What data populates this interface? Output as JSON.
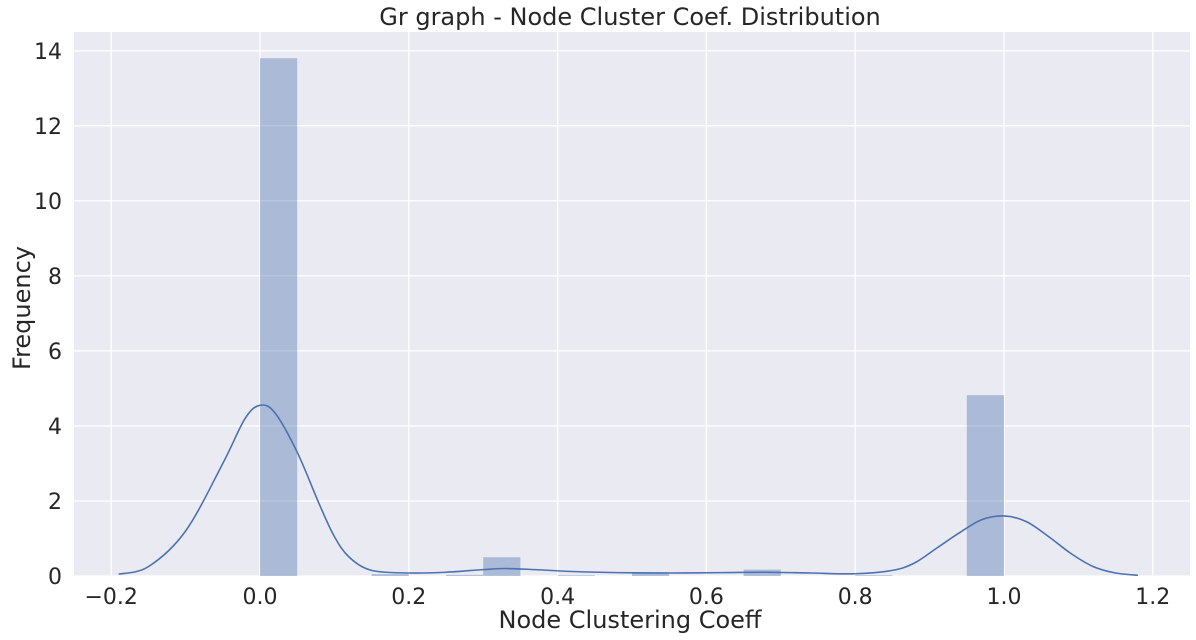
{
  "chart_data": {
    "type": "bar",
    "title": "Gr graph - Node Cluster Coef. Distribution",
    "xlabel": "Node Clustering Coeff",
    "ylabel": "Frequency",
    "xlim": [
      -0.25,
      1.25
    ],
    "ylim": [
      0,
      14.5
    ],
    "x_ticks": [
      -0.2,
      0.0,
      0.2,
      0.4,
      0.6,
      0.8,
      1.0,
      1.2
    ],
    "x_tick_labels": [
      "−0.2",
      "0.0",
      "0.2",
      "0.4",
      "0.6",
      "0.8",
      "1.0",
      "1.2"
    ],
    "y_ticks": [
      0,
      2,
      4,
      6,
      8,
      10,
      12,
      14
    ],
    "y_tick_labels": [
      "0",
      "2",
      "4",
      "6",
      "8",
      "10",
      "12",
      "14"
    ],
    "grid": true,
    "bar_color": "#4c72b0",
    "kde_color": "#4c72b0",
    "background_color": "#eaeaf2",
    "bins": [
      {
        "x0": 0.0,
        "x1": 0.05,
        "value": 13.8
      },
      {
        "x0": 0.05,
        "x1": 0.1,
        "value": 0.0
      },
      {
        "x0": 0.1,
        "x1": 0.15,
        "value": 0.0
      },
      {
        "x0": 0.15,
        "x1": 0.2,
        "value": 0.05
      },
      {
        "x0": 0.2,
        "x1": 0.25,
        "value": 0.0
      },
      {
        "x0": 0.25,
        "x1": 0.3,
        "value": 0.03
      },
      {
        "x0": 0.3,
        "x1": 0.35,
        "value": 0.5
      },
      {
        "x0": 0.35,
        "x1": 0.4,
        "value": 0.0
      },
      {
        "x0": 0.4,
        "x1": 0.45,
        "value": 0.02
      },
      {
        "x0": 0.45,
        "x1": 0.5,
        "value": 0.0
      },
      {
        "x0": 0.5,
        "x1": 0.55,
        "value": 0.1
      },
      {
        "x0": 0.55,
        "x1": 0.6,
        "value": 0.0
      },
      {
        "x0": 0.6,
        "x1": 0.65,
        "value": 0.0
      },
      {
        "x0": 0.65,
        "x1": 0.7,
        "value": 0.17
      },
      {
        "x0": 0.7,
        "x1": 0.75,
        "value": 0.0
      },
      {
        "x0": 0.75,
        "x1": 0.8,
        "value": 0.0
      },
      {
        "x0": 0.8,
        "x1": 0.85,
        "value": 0.02
      },
      {
        "x0": 0.85,
        "x1": 0.9,
        "value": 0.0
      },
      {
        "x0": 0.9,
        "x1": 0.95,
        "value": 0.0
      },
      {
        "x0": 0.95,
        "x1": 1.0,
        "value": 4.82
      }
    ],
    "kde": {
      "x": [
        -0.19,
        -0.15,
        -0.1,
        -0.05,
        -0.02,
        0.0,
        0.02,
        0.05,
        0.08,
        0.1,
        0.12,
        0.15,
        0.2,
        0.25,
        0.3,
        0.33,
        0.37,
        0.42,
        0.48,
        0.55,
        0.62,
        0.68,
        0.74,
        0.8,
        0.85,
        0.88,
        0.91,
        0.94,
        0.97,
        1.0,
        1.03,
        1.06,
        1.09,
        1.12,
        1.15,
        1.18
      ],
      "y": [
        0.05,
        0.25,
        1.2,
        3.0,
        4.2,
        4.55,
        4.35,
        3.3,
        1.9,
        1.05,
        0.5,
        0.15,
        0.08,
        0.1,
        0.17,
        0.2,
        0.17,
        0.12,
        0.09,
        0.08,
        0.09,
        0.1,
        0.08,
        0.06,
        0.15,
        0.35,
        0.75,
        1.15,
        1.5,
        1.6,
        1.45,
        1.05,
        0.6,
        0.25,
        0.08,
        0.02
      ]
    }
  }
}
